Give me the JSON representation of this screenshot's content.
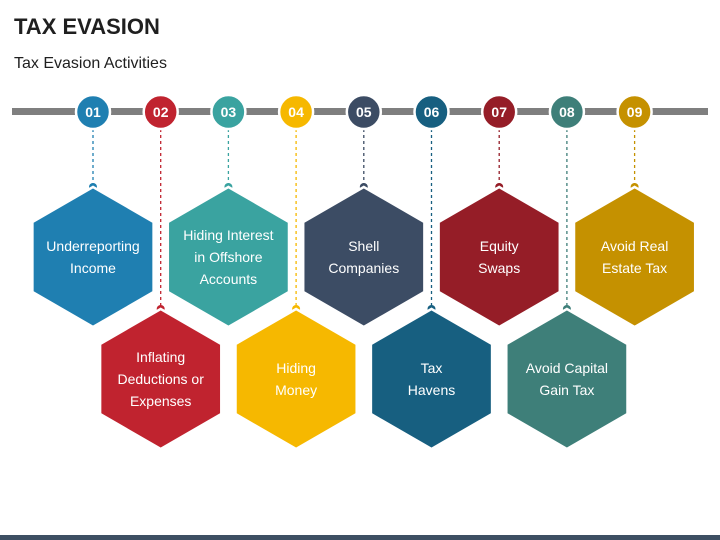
{
  "header": {
    "title": "TAX EVASION",
    "subtitle": "Tax Evasion Activities"
  },
  "steps": [
    {
      "number": "01",
      "lines": [
        "Underreporting",
        "Income"
      ],
      "color": "#1f7fb1"
    },
    {
      "number": "02",
      "lines": [
        "Inflating",
        "Deductions or",
        "Expenses"
      ],
      "color": "#c0232f"
    },
    {
      "number": "03",
      "lines": [
        "Hiding Interest",
        "in Offshore",
        "Accounts"
      ],
      "color": "#3aa3a0"
    },
    {
      "number": "04",
      "lines": [
        "Hiding",
        "Money"
      ],
      "color": "#f6b800"
    },
    {
      "number": "05",
      "lines": [
        "Shell",
        "Companies"
      ],
      "color": "#3c4c64"
    },
    {
      "number": "06",
      "lines": [
        "Tax",
        "Havens"
      ],
      "color": "#175f80"
    },
    {
      "number": "07",
      "lines": [
        "Equity",
        "Swaps"
      ],
      "color": "#951d27"
    },
    {
      "number": "08",
      "lines": [
        "Avoid Capital",
        "Gain Tax"
      ],
      "color": "#3e7f79"
    },
    {
      "number": "09",
      "lines": [
        "Avoid Real",
        "Estate Tax"
      ],
      "color": "#c59100"
    }
  ],
  "colors": {
    "line": "#7f7f7f",
    "bottom_bar": "#3d4f63"
  }
}
